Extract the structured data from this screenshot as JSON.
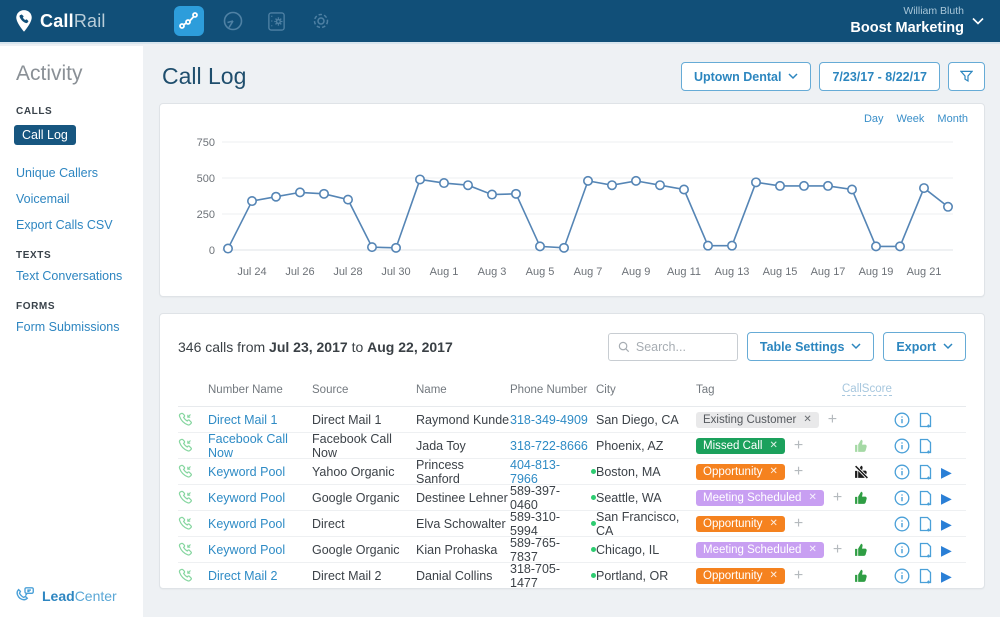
{
  "navbar": {
    "brand_bold": "Call",
    "brand_light": "Rail",
    "user_name": "William Bluth",
    "account_name": "Boost Marketing"
  },
  "sidebar": {
    "title": "Activity",
    "sections": [
      {
        "heading": "CALLS",
        "items": [
          {
            "label": "Call Log",
            "active": true
          },
          {
            "label": "Unique Callers",
            "active": false
          },
          {
            "label": "Voicemail",
            "active": false
          },
          {
            "label": "Export Calls CSV",
            "active": false
          }
        ]
      },
      {
        "heading": "TEXTS",
        "items": [
          {
            "label": "Text Conversations",
            "active": false
          }
        ]
      },
      {
        "heading": "FORMS",
        "items": [
          {
            "label": "Form Submissions",
            "active": false
          }
        ]
      }
    ],
    "footer_bold": "Lead",
    "footer_light": "Center"
  },
  "header": {
    "title": "Call Log",
    "company_selector": "Uptown Dental",
    "date_range": "7/23/17 - 8/22/17"
  },
  "chart": {
    "range_links": [
      "Day",
      "Week",
      "Month"
    ]
  },
  "chart_data": {
    "type": "line",
    "title": "Calls per day",
    "x": [
      "Jul 23",
      "Jul 24",
      "Jul 25",
      "Jul 26",
      "Jul 27",
      "Jul 28",
      "Jul 29",
      "Jul 30",
      "Jul 31",
      "Aug 1",
      "Aug 2",
      "Aug 3",
      "Aug 4",
      "Aug 5",
      "Aug 6",
      "Aug 7",
      "Aug 8",
      "Aug 9",
      "Aug 10",
      "Aug 11",
      "Aug 12",
      "Aug 13",
      "Aug 14",
      "Aug 15",
      "Aug 16",
      "Aug 17",
      "Aug 18",
      "Aug 19",
      "Aug 20",
      "Aug 21",
      "Aug 22"
    ],
    "values": [
      10,
      340,
      370,
      400,
      390,
      350,
      20,
      15,
      490,
      465,
      450,
      385,
      390,
      25,
      15,
      480,
      450,
      480,
      450,
      420,
      30,
      30,
      470,
      445,
      445,
      445,
      420,
      25,
      25,
      430,
      300
    ],
    "x_tick_labels": [
      "Jul 24",
      "Jul 26",
      "Jul 28",
      "Jul 30",
      "Aug 1",
      "Aug 3",
      "Aug 5",
      "Aug 7",
      "Aug 9",
      "Aug 11",
      "Aug 13",
      "Aug 15",
      "Aug 17",
      "Aug 19",
      "Aug 21"
    ],
    "yticks": [
      0,
      250,
      500,
      750
    ],
    "ylim": [
      0,
      750
    ],
    "line_color": "#5585b5",
    "grid": true,
    "legend": false
  },
  "table": {
    "summary": {
      "prefix": "346 calls from",
      "start": "Jul 23, 2017",
      "mid": "to",
      "end": "Aug 22, 2017"
    },
    "search_placeholder": "Search...",
    "table_settings_label": "Table Settings",
    "export_label": "Export",
    "columns": [
      "Number Name",
      "Source",
      "Name",
      "Phone Number",
      "City",
      "Tag",
      "CallScore"
    ],
    "tag_colors": {
      "gray": {
        "bg": "#e9e9ea",
        "text": "#55595e"
      },
      "green": {
        "bg": "#1ba15c",
        "text": "#ffffff"
      },
      "orange": {
        "bg": "#f5821f",
        "text": "#ffffff"
      },
      "purple": {
        "bg": "#c89ff2",
        "text": "#ffffff"
      }
    },
    "score_colors": {
      "thumb-up": "#2f9e44",
      "light-thumb-up": "#a5d9a5",
      "no-score": "#1b1b1b"
    },
    "rows": [
      {
        "number_name": "Direct Mail 1",
        "source": "Direct Mail 1",
        "name": "Raymond Kunde",
        "phone": "318-349-4909",
        "phone_link": true,
        "active_dot": false,
        "city": "San Diego, CA",
        "tag": {
          "label": "Existing Customer",
          "color": "gray"
        },
        "score": "none",
        "has_play": false
      },
      {
        "number_name": "Facebook Call Now",
        "source": "Facebook Call Now",
        "name": "Jada Toy",
        "phone": "318-722-8666",
        "phone_link": true,
        "active_dot": false,
        "city": "Phoenix, AZ",
        "tag": {
          "label": "Missed Call",
          "color": "green"
        },
        "score": "light-thumb-up",
        "has_play": false
      },
      {
        "number_name": "Keyword Pool",
        "source": "Yahoo Organic",
        "name": "Princess Sanford",
        "phone": "404-813-7966",
        "phone_link": true,
        "active_dot": true,
        "city": "Boston, MA",
        "tag": {
          "label": "Opportunity",
          "color": "orange"
        },
        "score": "no-score",
        "has_play": true
      },
      {
        "number_name": "Keyword Pool",
        "source": "Google Organic",
        "name": "Destinee Lehner",
        "phone": "589-397-0460",
        "phone_link": false,
        "active_dot": true,
        "city": "Seattle, WA",
        "tag": {
          "label": "Meeting Scheduled",
          "color": "purple"
        },
        "score": "thumb-up",
        "has_play": true
      },
      {
        "number_name": "Keyword Pool",
        "source": "Direct",
        "name": "Elva Schowalter",
        "phone": "589-310-5994",
        "phone_link": false,
        "active_dot": true,
        "city": "San Francisco, CA",
        "tag": {
          "label": "Opportunity",
          "color": "orange"
        },
        "score": "none",
        "has_play": true
      },
      {
        "number_name": "Keyword Pool",
        "source": "Google Organic",
        "name": "Kian Prohaska",
        "phone": "589-765-7837",
        "phone_link": false,
        "active_dot": true,
        "city": "Chicago, IL",
        "tag": {
          "label": "Meeting Scheduled",
          "color": "purple"
        },
        "score": "thumb-up",
        "has_play": true
      },
      {
        "number_name": "Direct Mail 2",
        "source": "Direct Mail 2",
        "name": "Danial Collins",
        "phone": "318-705-1477",
        "phone_link": false,
        "active_dot": true,
        "city": "Portland, OR",
        "tag": {
          "label": "Opportunity",
          "color": "orange"
        },
        "score": "thumb-up",
        "has_play": true
      }
    ]
  }
}
